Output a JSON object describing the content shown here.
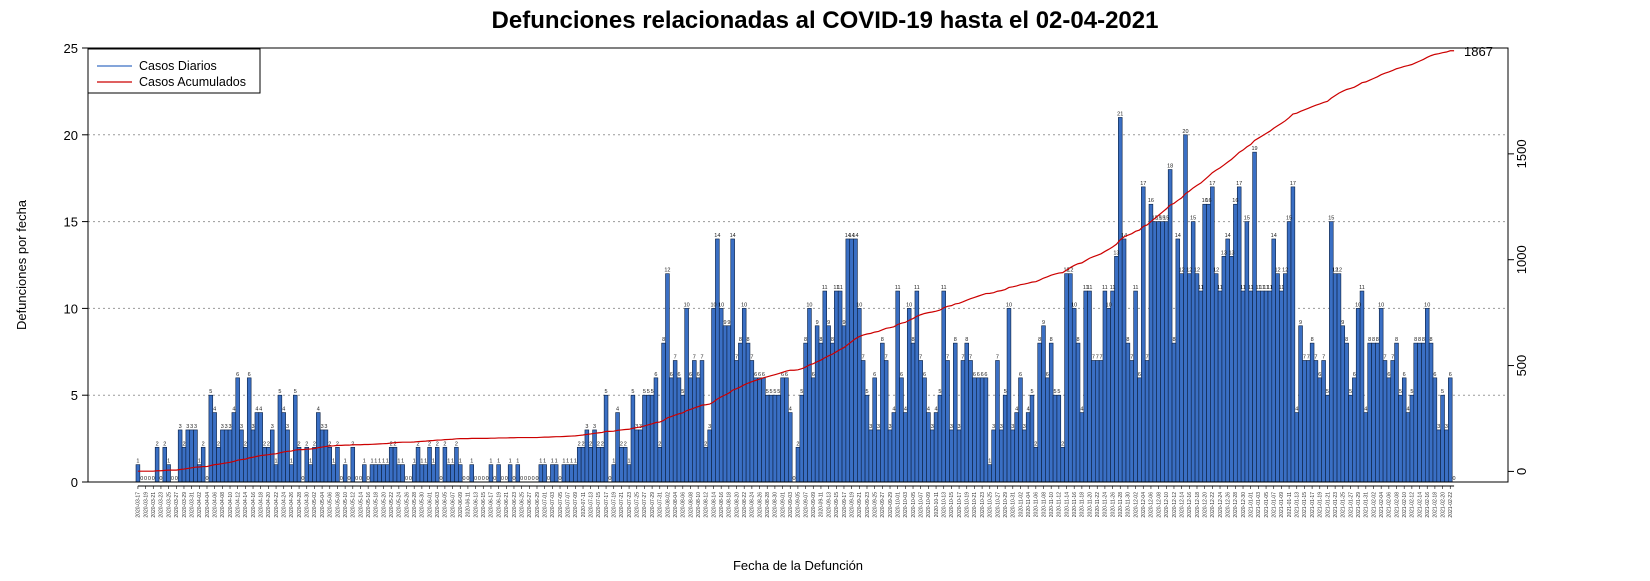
{
  "chart_data": {
    "type": "bar",
    "title": "Defunciones relacionadas al COVID-19 hasta el 02-04-2021",
    "xlabel": "Fecha de la Defunción",
    "ylabel": "Defunciones por fecha",
    "ylim": [
      0,
      25
    ],
    "yticks": [
      "0",
      "5",
      "10",
      "15",
      "20",
      "25"
    ],
    "y2lim": [
      -50,
      2000
    ],
    "y2ticks": [
      "0",
      "500",
      "1000",
      "1500"
    ],
    "grid": "horizontal dotted",
    "legend_position": "top-left",
    "legend": [
      "Casos Diarios",
      "Casos Acumulados"
    ],
    "final_cumulative_label": "1867",
    "start_date": "2020-03-17",
    "end_date": "2021-04-04",
    "series": [
      {
        "name": "Casos Diarios",
        "kind": "bar",
        "color": "#3a6fc4",
        "values": [
          1,
          0,
          0,
          0,
          0,
          2,
          0,
          2,
          1,
          0,
          0,
          3,
          2,
          3,
          3,
          3,
          1,
          2,
          0,
          5,
          4,
          2,
          3,
          3,
          3,
          4,
          6,
          3,
          2,
          6,
          3,
          4,
          4,
          2,
          2,
          3,
          1,
          5,
          4,
          3,
          1,
          5,
          2,
          0,
          2,
          1,
          2,
          4,
          3,
          3,
          2,
          1,
          2,
          0,
          1,
          0,
          2,
          0,
          0,
          1,
          0,
          1,
          1,
          1,
          1,
          1,
          2,
          2,
          1,
          1,
          0,
          0,
          1,
          2,
          1,
          1,
          2,
          1,
          2,
          0,
          2,
          1,
          1,
          2,
          1,
          0,
          0,
          1,
          0,
          0,
          0,
          0,
          1,
          0,
          1,
          0,
          0,
          1,
          0,
          1,
          0,
          0,
          0,
          0,
          0,
          1,
          1,
          0,
          1,
          1,
          0,
          1,
          1,
          1,
          1,
          2,
          2,
          3,
          2,
          3,
          2,
          2,
          5,
          0,
          1,
          4,
          2,
          2,
          1,
          5,
          3,
          3,
          5,
          5,
          5,
          6,
          2,
          8,
          12,
          6,
          7,
          6,
          5,
          10,
          6,
          7,
          6,
          7,
          2,
          3,
          10,
          14,
          10,
          9,
          9,
          14,
          7,
          8,
          10,
          8,
          7,
          6,
          6,
          6,
          5,
          5,
          5,
          5,
          6,
          6,
          4,
          0,
          2,
          5,
          8,
          10,
          6,
          9,
          8,
          11,
          9,
          8,
          11,
          11,
          9,
          14,
          14,
          14,
          10,
          7,
          5,
          3,
          6,
          3,
          8,
          7,
          3,
          4,
          11,
          6,
          4,
          10,
          8,
          11,
          7,
          6,
          4,
          3,
          4,
          5,
          11,
          7,
          3,
          8,
          3,
          7,
          8,
          7,
          6,
          6,
          6,
          6,
          1,
          3,
          7,
          3,
          5,
          10,
          3,
          4,
          6,
          3,
          4,
          5,
          2,
          8,
          9,
          6,
          8,
          5,
          5,
          2,
          12,
          12,
          10,
          8,
          4,
          11,
          11,
          7,
          7,
          7,
          11,
          10,
          11,
          13,
          21,
          14,
          8,
          7,
          11,
          6,
          17,
          7,
          16,
          15,
          15,
          15,
          15,
          18,
          8,
          14,
          12,
          20,
          12,
          15,
          12,
          11,
          16,
          16,
          17,
          12,
          11,
          13,
          14,
          13,
          16,
          17,
          11,
          15,
          11,
          19,
          11,
          11,
          11,
          11,
          14,
          12,
          11,
          12,
          15,
          17,
          4,
          9,
          7,
          7,
          8,
          7,
          6,
          7,
          5,
          15,
          12,
          12,
          9,
          8,
          5,
          6,
          10,
          11,
          4,
          8,
          8,
          8,
          10,
          7,
          6,
          7,
          8,
          5,
          6,
          4,
          5,
          8,
          8,
          8,
          10,
          8,
          6,
          3,
          5,
          3,
          6,
          0
        ]
      },
      {
        "name": "Casos Acumulados",
        "kind": "line",
        "color": "#cc0000"
      }
    ]
  }
}
